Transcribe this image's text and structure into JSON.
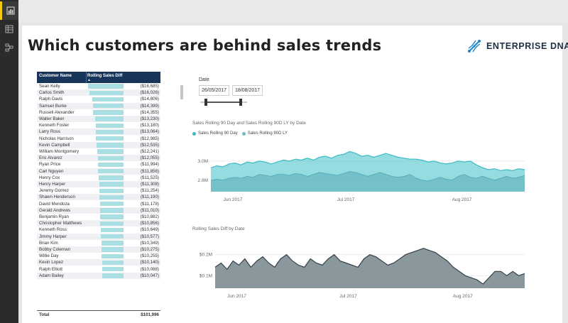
{
  "report": {
    "title": "Which customers are behind sales trends",
    "logo_text": "ENTERPRISE DNA"
  },
  "nav": [
    {
      "icon": "report-view-icon",
      "active": true
    },
    {
      "icon": "data-view-icon",
      "active": false
    },
    {
      "icon": "model-view-icon",
      "active": false
    }
  ],
  "table": {
    "headers": {
      "customer": "Customer Name",
      "measure": "Rolling Sales Diff"
    },
    "sort_indicator": "▲",
    "rows": [
      {
        "name": "Sean Kelly",
        "value": "($16,685)",
        "amount": -16685
      },
      {
        "name": "Carlos Smith",
        "value": "($16,026)",
        "amount": -16026
      },
      {
        "name": "Ralph Davis",
        "value": "($14,806)",
        "amount": -14806
      },
      {
        "name": "Samuel Burke",
        "value": "($14,399)",
        "amount": -14399
      },
      {
        "name": "Russell Alexander",
        "value": "($14,355)",
        "amount": -14355
      },
      {
        "name": "Walter Baker",
        "value": "($13,230)",
        "amount": -13230
      },
      {
        "name": "Kenneth Foster",
        "value": "($13,180)",
        "amount": -13180
      },
      {
        "name": "Larry Ross",
        "value": "($13,064)",
        "amount": -13064
      },
      {
        "name": "Nicholas Harrison",
        "value": "($12,985)",
        "amount": -12985
      },
      {
        "name": "Kevin Campbell",
        "value": "($12,535)",
        "amount": -12535
      },
      {
        "name": "William Montgomery",
        "value": "($12,241)",
        "amount": -12241
      },
      {
        "name": "Eric Alvarez",
        "value": "($12,055)",
        "amount": -12055
      },
      {
        "name": "Ryan Price",
        "value": "($11,994)",
        "amount": -11994
      },
      {
        "name": "Carl Nguyen",
        "value": "($11,856)",
        "amount": -11856
      },
      {
        "name": "Henry Cox",
        "value": "($11,525)",
        "amount": -11525
      },
      {
        "name": "Henry Harper",
        "value": "($11,308)",
        "amount": -11308
      },
      {
        "name": "Jeremy Gomez",
        "value": "($11,254)",
        "amount": -11254
      },
      {
        "name": "Shawn Henderson",
        "value": "($11,190)",
        "amount": -11190
      },
      {
        "name": "David Mendoza",
        "value": "($11,178)",
        "amount": -11178
      },
      {
        "name": "Gerald Andrews",
        "value": "($11,010)",
        "amount": -11010
      },
      {
        "name": "Benjamin Ryan",
        "value": "($10,882)",
        "amount": -10882
      },
      {
        "name": "Christopher Matthews",
        "value": "($10,856)",
        "amount": -10856
      },
      {
        "name": "Kenneth Ross",
        "value": "($10,649)",
        "amount": -10649
      },
      {
        "name": "Jimmy Harper",
        "value": "($10,577)",
        "amount": -10577
      },
      {
        "name": "Brian Kim",
        "value": "($10,349)",
        "amount": -10349
      },
      {
        "name": "Bobby Coleman",
        "value": "($10,275)",
        "amount": -10275
      },
      {
        "name": "Willie Day",
        "value": "($10,255)",
        "amount": -10255
      },
      {
        "name": "Kevin Lopez",
        "value": "($10,140)",
        "amount": -10140
      },
      {
        "name": "Ralph Elliott",
        "value": "($10,088)",
        "amount": -10088
      },
      {
        "name": "Adam Bailey",
        "value": "($10,047)",
        "amount": -10047
      }
    ],
    "total_label": "Total",
    "total_value": "$101,996"
  },
  "date_filter": {
    "label": "Date",
    "start": "26/05/2017",
    "end": "18/08/2017",
    "range_fraction": [
      0.12,
      0.87
    ]
  },
  "colors": {
    "current": "#4cc4cc",
    "last_year": "#6fbcc4",
    "diff": "#8a979d",
    "table_bar": "#a9dfe2",
    "header": "#17345a"
  },
  "chart_data": [
    {
      "type": "area",
      "title": "Sales Rolling 90 Day and Sales Rolling 90D LY by Date",
      "legend": [
        "Sales Rolling 90 Day",
        "Sales Rolling 90D LY"
      ],
      "legend_position": "top-left",
      "x_tick_labels": [
        "Jun 2017",
        "Jul 2017",
        "Aug 2017"
      ],
      "y_tick_labels": [
        "3.0M",
        "2.8M"
      ],
      "ylim": [
        2.68,
        3.14
      ],
      "series": [
        {
          "name": "Sales Rolling 90 Day",
          "values": [
            2.93,
            2.95,
            2.94,
            2.97,
            2.98,
            2.96,
            2.99,
            2.98,
            3.0,
            2.99,
            2.97,
            2.99,
            3.01,
            3.0,
            3.02,
            3.01,
            3.03,
            3.01,
            3.04,
            3.05,
            3.03,
            3.06,
            3.07,
            3.1,
            3.08,
            3.05,
            3.06,
            3.04,
            3.06,
            3.08,
            3.06,
            3.04,
            3.03,
            3.02,
            3.02,
            3.01,
            2.99,
            3.0,
            2.98,
            2.97,
            2.98,
            3.0,
            2.99,
            3.0,
            2.96,
            2.93,
            2.91,
            2.92,
            2.9,
            2.91,
            2.9,
            2.92,
            2.91
          ]
        },
        {
          "name": "Sales Rolling 90D LY",
          "values": [
            2.8,
            2.81,
            2.8,
            2.82,
            2.83,
            2.82,
            2.84,
            2.83,
            2.86,
            2.85,
            2.84,
            2.86,
            2.86,
            2.85,
            2.87,
            2.86,
            2.84,
            2.86,
            2.88,
            2.87,
            2.86,
            2.85,
            2.87,
            2.89,
            2.88,
            2.86,
            2.84,
            2.86,
            2.88,
            2.86,
            2.84,
            2.83,
            2.84,
            2.86,
            2.82,
            2.8,
            2.79,
            2.81,
            2.83,
            2.81,
            2.8,
            2.84,
            2.86,
            2.83,
            2.82,
            2.84,
            2.82,
            2.8,
            2.82,
            2.84,
            2.82,
            2.83,
            2.85
          ]
        }
      ]
    },
    {
      "type": "area",
      "title": "Rolling Sales Diff by Date",
      "x_tick_labels": [
        "Jun 2017",
        "Jul 2017",
        "Aug 2017"
      ],
      "y_tick_labels": [
        "$0.2M",
        "$0.1M"
      ],
      "ylim": [
        0.04,
        0.27
      ],
      "series": [
        {
          "name": "Rolling Sales Diff",
          "values": [
            0.14,
            0.16,
            0.13,
            0.17,
            0.15,
            0.18,
            0.14,
            0.17,
            0.19,
            0.16,
            0.14,
            0.18,
            0.2,
            0.17,
            0.15,
            0.14,
            0.18,
            0.16,
            0.15,
            0.18,
            0.2,
            0.17,
            0.16,
            0.15,
            0.14,
            0.18,
            0.2,
            0.19,
            0.17,
            0.15,
            0.16,
            0.18,
            0.2,
            0.21,
            0.22,
            0.23,
            0.22,
            0.21,
            0.19,
            0.17,
            0.14,
            0.12,
            0.1,
            0.09,
            0.08,
            0.06,
            0.09,
            0.12,
            0.12,
            0.1,
            0.12,
            0.1,
            0.11
          ]
        }
      ]
    }
  ]
}
